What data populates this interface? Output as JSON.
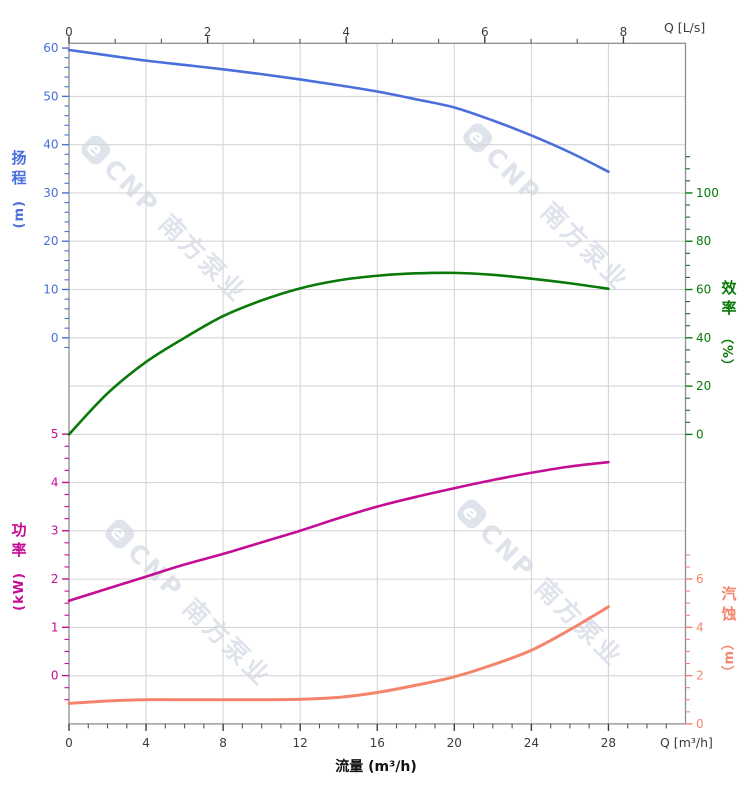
{
  "watermark": {
    "logo": "e",
    "text": "CNP 南方泵业",
    "color": "#dfe3eb"
  },
  "labels": {
    "top_right_unit": "Q [L/s]",
    "bottom_right_unit": "Q [m³/h]",
    "x_axis_title": "流量 (m³/h)"
  },
  "chart_data": {
    "type": "line",
    "title": "",
    "x_label": "流量 (m³/h)",
    "x_m3h": [
      0,
      2,
      4,
      6,
      8,
      10,
      12,
      14,
      16,
      18,
      20,
      22,
      24,
      26,
      28
    ],
    "series": [
      {
        "name": "扬程",
        "axis": "head",
        "color": "#4a6edb",
        "values": [
          59.6,
          58.5,
          57.4,
          56.5,
          55.6,
          54.6,
          53.5,
          52.3,
          51.0,
          49.4,
          47.7,
          45.0,
          41.9,
          38.4,
          34.4
        ]
      },
      {
        "name": "效率",
        "axis": "efficiency",
        "color": "#097909",
        "values": [
          0,
          17,
          30,
          40,
          49,
          55.5,
          60.5,
          63.8,
          65.7,
          66.7,
          66.9,
          66.1,
          64.5,
          62.6,
          60.3
        ]
      },
      {
        "name": "功率",
        "axis": "power",
        "color": "#c40d94",
        "values": [
          1.55,
          1.8,
          2.05,
          2.3,
          2.52,
          2.76,
          3.0,
          3.26,
          3.5,
          3.7,
          3.88,
          4.05,
          4.2,
          4.33,
          4.42
        ]
      },
      {
        "name": "汽蚀",
        "axis": "npsh",
        "color": "#f5846d",
        "values": [
          0.85,
          0.95,
          1.0,
          1.0,
          1.0,
          1.0,
          1.02,
          1.1,
          1.3,
          1.6,
          1.95,
          2.45,
          3.05,
          3.9,
          4.85
        ]
      }
    ],
    "axes": {
      "top": {
        "label": "Q [L/s]",
        "ticks": [
          0,
          2,
          4,
          6,
          8
        ],
        "minor_step": 0.6667,
        "minor_range": [
          0,
          8
        ],
        "range": [
          0,
          8.9
        ],
        "color": "#3c3c3c"
      },
      "bottom": {
        "label": "Q [m³/h]",
        "title": "流量 (m³/h)",
        "ticks": [
          0,
          4,
          8,
          12,
          16,
          20,
          24,
          28
        ],
        "minor_step": 1,
        "minor_range": [
          0,
          31
        ],
        "range": [
          0,
          32
        ],
        "color": "#3c3c3c"
      },
      "head": {
        "title": "扬程",
        "unit": "(m)",
        "ticks": [
          0,
          10,
          20,
          30,
          40,
          50,
          60
        ],
        "minor_step": 2,
        "minor_range": [
          -2,
          60
        ],
        "range": [
          0,
          60
        ],
        "color": "#4a6edb",
        "side": "left"
      },
      "efficiency": {
        "title": "效率",
        "unit": "（%）",
        "ticks": [
          0,
          20,
          40,
          60,
          80,
          100
        ],
        "minor_step": 5,
        "minor_range": [
          0,
          115
        ],
        "range": [
          0,
          100
        ],
        "color": "#097909",
        "side": "right"
      },
      "power": {
        "title": "功率",
        "unit": "(kW)",
        "ticks": [
          0,
          1,
          2,
          3,
          4,
          5
        ],
        "minor_step": 0.25,
        "minor_range": [
          -0.5,
          5
        ],
        "range": [
          0,
          5
        ],
        "color": "#c40d94",
        "side": "left"
      },
      "npsh": {
        "title": "汽蚀",
        "unit": "（m）",
        "ticks": [
          0,
          2,
          4,
          6
        ],
        "minor_step": 0.5,
        "minor_range": [
          0,
          7
        ],
        "range": [
          0,
          6
        ],
        "color": "#f5846d",
        "side": "right"
      }
    },
    "grid": {
      "show": true,
      "color": "#d6d6d6",
      "spine_color": "#8f8f8f"
    },
    "legend": "none"
  }
}
